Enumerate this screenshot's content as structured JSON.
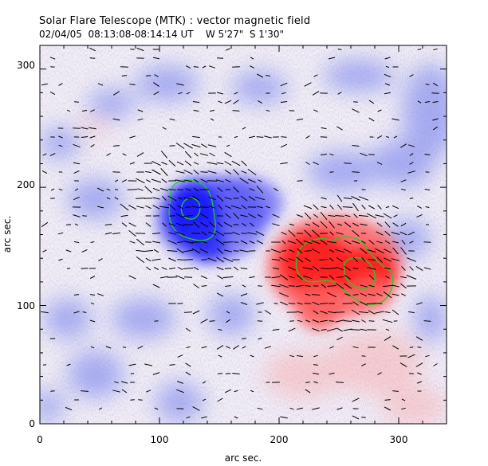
{
  "header": {
    "title": "Solar Flare Telescope (MTK) : vector magnetic field",
    "subtitle": "02/04/05  08:13:08-08:14:14 UT    W 5'27\"  S 1'30\""
  },
  "axes": {
    "x_label": "arc sec.",
    "y_label": "arc sec.",
    "x_range": [
      0,
      340
    ],
    "y_range": [
      0,
      320
    ],
    "x_ticks": [
      "0",
      "100",
      "200",
      "300"
    ],
    "y_ticks": [
      "0",
      "100",
      "200",
      "300"
    ],
    "x_tick_values": [
      0,
      100,
      200,
      300
    ],
    "y_tick_values": [
      0,
      100,
      200,
      300
    ]
  },
  "colors": {
    "positive_polarity": "#ff2020",
    "negative_polarity": "#2b2bff",
    "contour": "#22cc22",
    "vector": "#000000",
    "background": "#ffffff"
  }
}
